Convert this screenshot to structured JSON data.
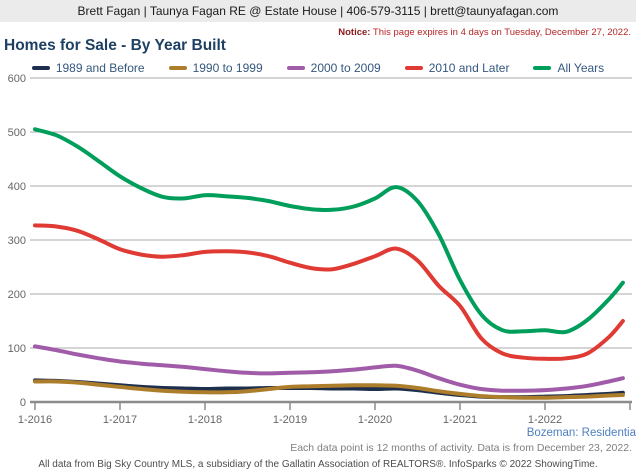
{
  "header": {
    "agent_info": "Brett Fagan | Taunya Fagan RE @ Estate House | 406-579-3115 | brett@taunyafagan.com"
  },
  "notice": {
    "label": "Notice:",
    "text": " This page expires in 4 days on Tuesday, December 27, 2022."
  },
  "title": "Homes for Sale - By Year Built",
  "chart_data": {
    "type": "line",
    "title": "Homes for Sale - By Year Built",
    "grid": "horizontal",
    "legend_position": "top",
    "ylim": [
      0,
      600
    ],
    "y_ticks": [
      0,
      100,
      200,
      300,
      400,
      500,
      600
    ],
    "x_tick_labels": [
      "1-2016",
      "1-2017",
      "1-2018",
      "1-2019",
      "1-2020",
      "1-2021",
      "1-2022"
    ],
    "x_domain_months": 84,
    "x_points": [
      0,
      3,
      6,
      9,
      12,
      15,
      18,
      21,
      24,
      27,
      30,
      33,
      36,
      39,
      42,
      45,
      48,
      51,
      54,
      57,
      60,
      63,
      66,
      69,
      72,
      75,
      78,
      81,
      83
    ],
    "series": [
      {
        "name": "1989 and Before",
        "color": "#1E2F4D",
        "values": [
          40,
          39,
          37,
          34,
          31,
          28,
          26,
          25,
          24,
          25,
          25,
          26,
          26,
          26,
          25,
          25,
          24,
          25,
          22,
          17,
          13,
          10,
          9,
          9,
          10,
          11,
          13,
          15,
          17
        ]
      },
      {
        "name": "1990 to 1999",
        "color": "#AC7D2B",
        "values": [
          38,
          38,
          36,
          32,
          28,
          24,
          21,
          19,
          18,
          18,
          20,
          24,
          28,
          29,
          30,
          31,
          31,
          30,
          26,
          20,
          15,
          11,
          9,
          8,
          8,
          9,
          10,
          12,
          13
        ]
      },
      {
        "name": "2000 to 2009",
        "color": "#A05CA8",
        "values": [
          103,
          96,
          88,
          81,
          75,
          71,
          68,
          65,
          61,
          57,
          54,
          53,
          54,
          55,
          57,
          60,
          64,
          67,
          58,
          44,
          32,
          24,
          21,
          21,
          22,
          25,
          30,
          38,
          44
        ]
      },
      {
        "name": "2010 and Later",
        "color": "#E03A34",
        "values": [
          327,
          325,
          317,
          301,
          283,
          273,
          269,
          272,
          278,
          279,
          277,
          270,
          258,
          248,
          246,
          256,
          270,
          284,
          262,
          215,
          178,
          118,
          90,
          82,
          80,
          81,
          90,
          120,
          150
        ]
      },
      {
        "name": "All Years",
        "color": "#009E5B",
        "values": [
          505,
          494,
          473,
          446,
          418,
          396,
          380,
          377,
          383,
          381,
          378,
          372,
          363,
          357,
          356,
          362,
          377,
          398,
          372,
          310,
          226,
          162,
          133,
          131,
          133,
          130,
          152,
          190,
          221
        ]
      }
    ]
  },
  "footer": {
    "market": "Bozeman: Residentia",
    "note": "Each data point is 12 months of activity. Data is from December 23, 2022.",
    "attribution": "All data from Big Sky Country MLS, a subsidiary of the Gallatin Association of REALTORS®. InfoSparks © 2022 ShowingTime."
  }
}
